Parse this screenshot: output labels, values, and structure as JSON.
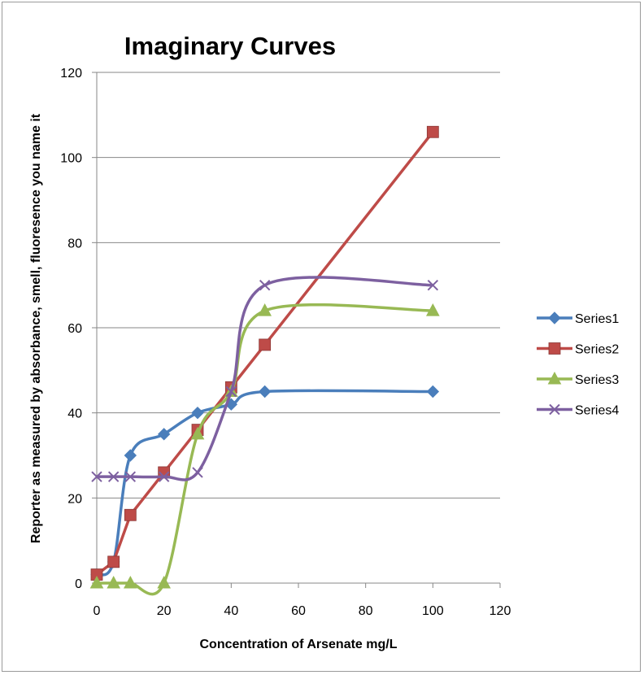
{
  "chart_data": {
    "type": "scatter",
    "title": "Imaginary Curves",
    "xlabel": "Concentration of Arsenate mg/L",
    "ylabel": "Reporter as measured by absorbance, smell, fluoresence you name it",
    "xlim": [
      0,
      120
    ],
    "ylim": [
      0,
      120
    ],
    "xticks": [
      0,
      20,
      40,
      60,
      80,
      100,
      120
    ],
    "yticks": [
      0,
      20,
      40,
      60,
      80,
      100,
      120
    ],
    "grid": "horizontal",
    "legend_position": "right",
    "series": [
      {
        "name": "Series1",
        "color": "#4a7ebb",
        "marker": "diamond",
        "smooth": true,
        "x": [
          0,
          5,
          10,
          20,
          30,
          40,
          50,
          100
        ],
        "y": [
          2,
          5,
          30,
          35,
          40,
          42,
          45,
          45
        ]
      },
      {
        "name": "Series2",
        "color": "#be4b48",
        "marker": "square",
        "smooth": false,
        "x": [
          0,
          5,
          10,
          20,
          30,
          40,
          50,
          100
        ],
        "y": [
          2,
          5,
          16,
          26,
          36,
          46,
          56,
          106
        ]
      },
      {
        "name": "Series3",
        "color": "#98b954",
        "marker": "triangle",
        "smooth": true,
        "x": [
          0,
          5,
          10,
          20,
          30,
          40,
          50,
          100
        ],
        "y": [
          0,
          0,
          0,
          0,
          35,
          45,
          64,
          64
        ]
      },
      {
        "name": "Series4",
        "color": "#7d60a0",
        "marker": "x",
        "smooth": true,
        "x": [
          0,
          5,
          10,
          20,
          30,
          40,
          50,
          100
        ],
        "y": [
          25,
          25,
          25,
          25,
          26,
          45,
          70,
          70
        ]
      }
    ]
  }
}
